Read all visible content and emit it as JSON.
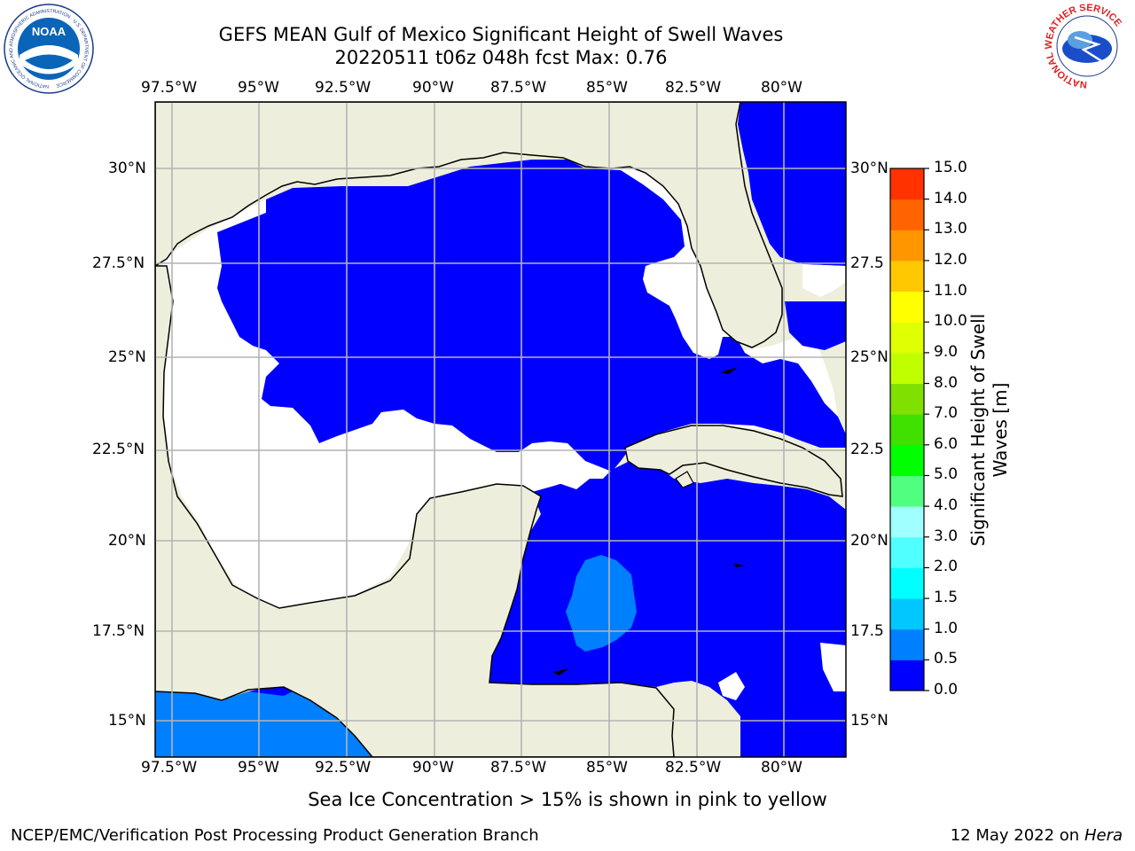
{
  "title_line1": "GEFS MEAN Gulf of Mexico Significant Height of Swell Waves",
  "title_line2": "20220511 t06z 048h fcst   Max: 0.76",
  "lon_labels": [
    "97.5°W",
    "95°W",
    "92.5°W",
    "90°W",
    "87.5°W",
    "85°W",
    "82.5°W",
    "80°W"
  ],
  "lat_labels_left": [
    "30°N",
    "27.5°N",
    "25°N",
    "22.5°N",
    "20°N",
    "17.5°N",
    "15°N"
  ],
  "lat_labels_right": [
    "30°N",
    "27.5",
    "25°N",
    "22.5",
    "20°N",
    "17.5",
    "15°N"
  ],
  "colorbar": {
    "label": "Significant Height of Swell Waves [m]",
    "ticks": [
      "0.0",
      "0.5",
      "1.0",
      "1.5",
      "2.0",
      "3.0",
      "4.0",
      "5.0",
      "6.0",
      "7.0",
      "8.0",
      "9.0",
      "10.0",
      "11.0",
      "12.0",
      "13.0",
      "14.0",
      "15.0"
    ],
    "colors": [
      "#0000ff",
      "#0080ff",
      "#00c8ff",
      "#00ffff",
      "#50ffff",
      "#a0ffff",
      "#50ff80",
      "#00ff00",
      "#40e000",
      "#80e000",
      "#c0ff00",
      "#e0ff00",
      "#ffff00",
      "#ffc800",
      "#ff9600",
      "#ff6400",
      "#ff3200",
      "#ff0000"
    ]
  },
  "colors": {
    "land": "#eeeedc",
    "ocean_low": "#0000ff",
    "ocean_mid": "#0080ff",
    "grid": "#b4b4b4"
  },
  "ice_note": "Sea Ice Concentration > 15% is shown in pink to yellow",
  "footer_left": "NCEP/EMC/Verification Post Processing Product Generation Branch",
  "footer_right_date": "12 May 2022 on",
  "footer_right_host": "Hera",
  "logo_left_text": "NOAA",
  "logo_left_ring": "NATIONAL OCEANIC AND ATMOSPHERIC ADMINISTRATION · U.S. DEPARTMENT OF COMMERCE",
  "logo_right_ring": "NATIONAL WEATHER SERVICE"
}
